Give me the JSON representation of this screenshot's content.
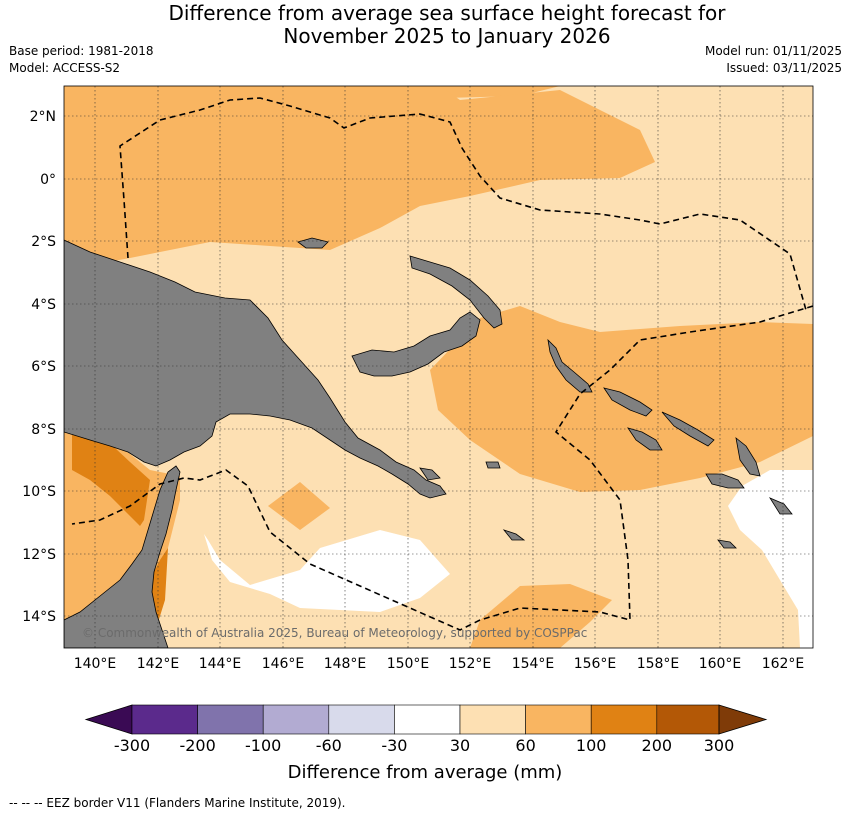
{
  "title_line1": "Difference from average sea surface height forecast for",
  "title_line2": "November 2025 to January 2026",
  "base_period": "Base period: 1981-2018",
  "model": "Model: ACCESS-S2",
  "model_run": "Model run: 01/11/2025",
  "issued": "Issued: 03/11/2025",
  "map": {
    "lat_labels": [
      "2°N",
      "0°",
      "2°S",
      "4°S",
      "6°S",
      "8°S",
      "10°S",
      "12°S",
      "14°S"
    ],
    "lon_labels": [
      "140°E",
      "142°E",
      "144°E",
      "146°E",
      "148°E",
      "150°E",
      "152°E",
      "154°E",
      "156°E",
      "158°E",
      "160°E",
      "162°E"
    ],
    "copyright": "© Commonwealth of Australia 2025, Bureau of Meteorology, supported by COSPPac",
    "land_color": "#808080"
  },
  "colorbar": {
    "title": "Difference from average (mm)",
    "labels": [
      "-300",
      "-200",
      "-100",
      "-60",
      "-30",
      "30",
      "60",
      "100",
      "200",
      "300"
    ],
    "colors": [
      "#3a0a54",
      "#5b2a8c",
      "#8073ac",
      "#b2abd2",
      "#d8daeb",
      "#ffffff",
      "#fde0b3",
      "#f9b561",
      "#e08214",
      "#b35806",
      "#7f3b08"
    ]
  },
  "footnote": "--  --  -- EEZ border V11 (Flanders Marine Institute, 2019)."
}
